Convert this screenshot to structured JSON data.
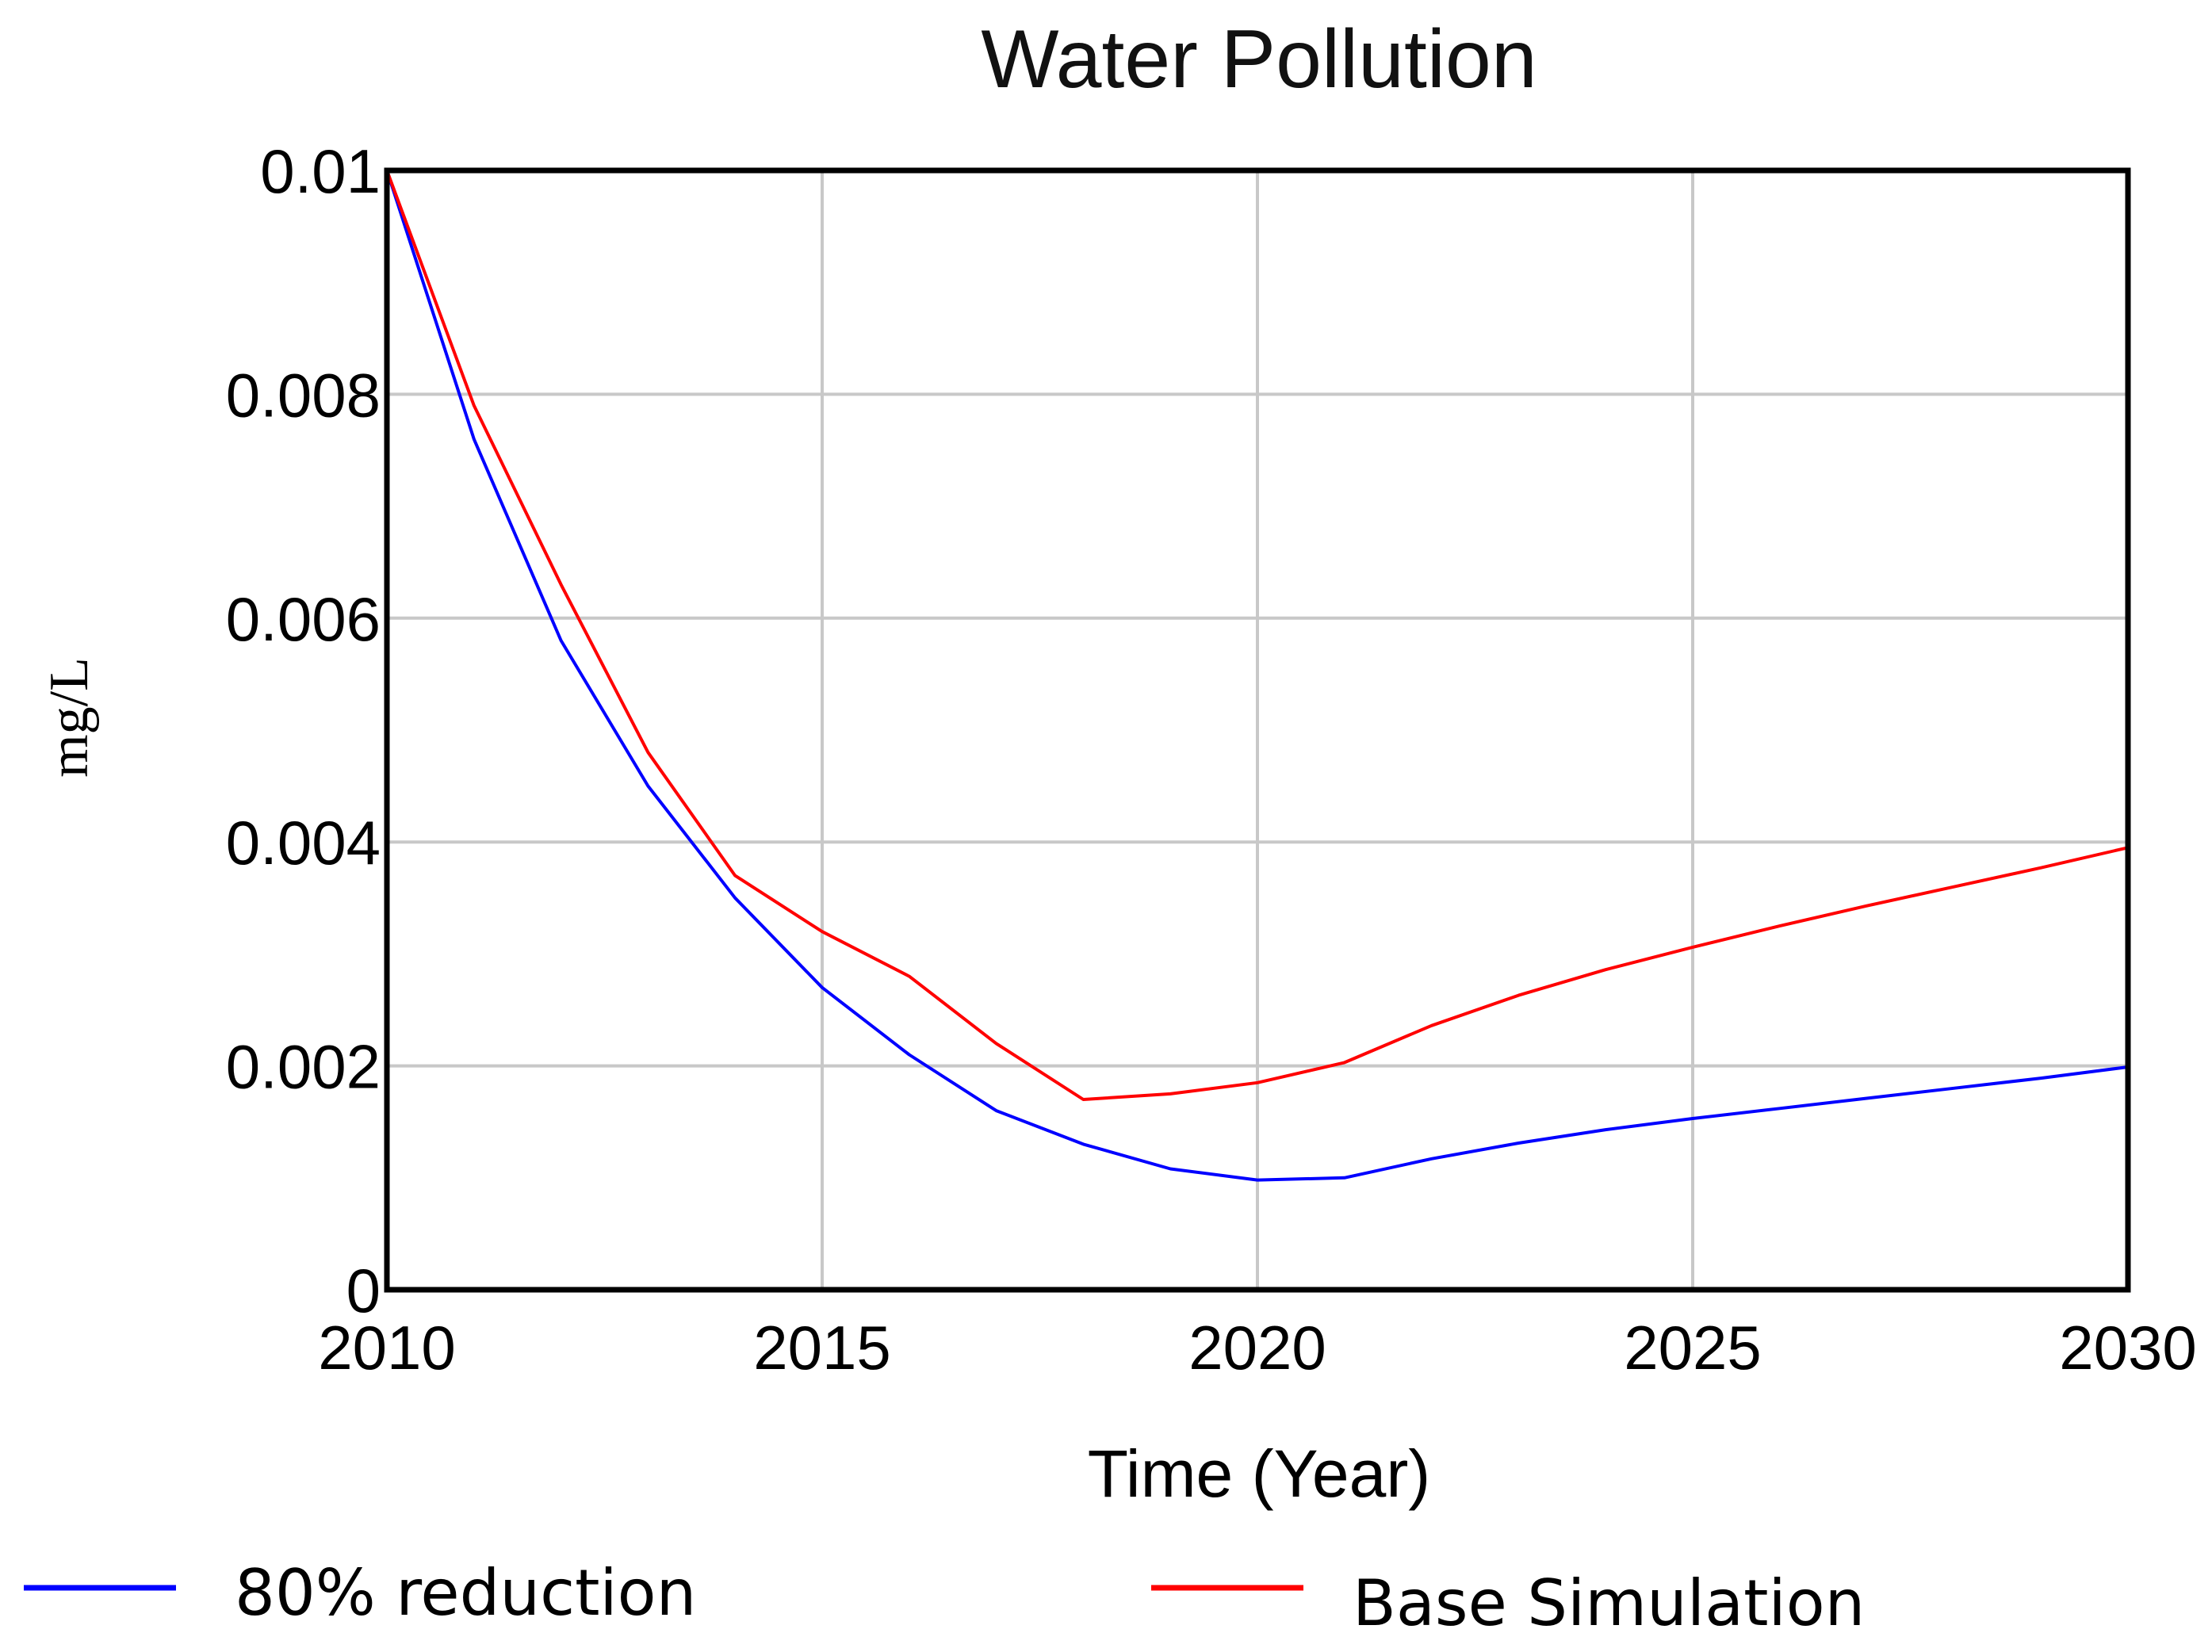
{
  "chart_data": {
    "type": "line",
    "title": "Water Pollution",
    "xlabel": "Time (Year)",
    "ylabel": "mg/L",
    "xlim": [
      2010,
      2030
    ],
    "ylim": [
      0,
      0.01
    ],
    "x_ticks": [
      {
        "value": 2010,
        "label": "2010"
      },
      {
        "value": 2015,
        "label": "2015"
      },
      {
        "value": 2020,
        "label": "2020"
      },
      {
        "value": 2025,
        "label": "2025"
      },
      {
        "value": 2030,
        "label": "2030"
      }
    ],
    "y_ticks": [
      {
        "value": 0,
        "label": "0"
      },
      {
        "value": 0.002,
        "label": "0.002"
      },
      {
        "value": 0.004,
        "label": "0.004"
      },
      {
        "value": 0.006,
        "label": "0.006"
      },
      {
        "value": 0.008,
        "label": "0.008"
      },
      {
        "value": 0.01,
        "label": "0.01"
      }
    ],
    "grid": true,
    "legend_position": "bottom",
    "x": [
      2010,
      2011,
      2012,
      2013,
      2014,
      2015,
      2016,
      2017,
      2018,
      2019,
      2020,
      2021,
      2022,
      2023,
      2024,
      2025,
      2026,
      2027,
      2028,
      2029,
      2030
    ],
    "series": [
      {
        "name": "80% reduction",
        "color": "#0000ff",
        "values": [
          0.01,
          0.0076,
          0.0058,
          0.0045,
          0.0035,
          0.0027,
          0.0021,
          0.0016,
          0.0013,
          0.00108,
          0.00098,
          0.001,
          0.00117,
          0.00131,
          0.00143,
          0.00153,
          0.00162,
          0.00171,
          0.0018,
          0.00189,
          0.00199
        ]
      },
      {
        "name": "Base Simulation",
        "color": "#ff0000",
        "values": [
          0.01,
          0.0079,
          0.0063,
          0.0048,
          0.0037,
          0.0032,
          0.0028,
          0.0022,
          0.0017,
          0.00175,
          0.00185,
          0.00203,
          0.00236,
          0.00263,
          0.00286,
          0.00306,
          0.00325,
          0.00343,
          0.0036,
          0.00377,
          0.00395
        ]
      }
    ]
  }
}
